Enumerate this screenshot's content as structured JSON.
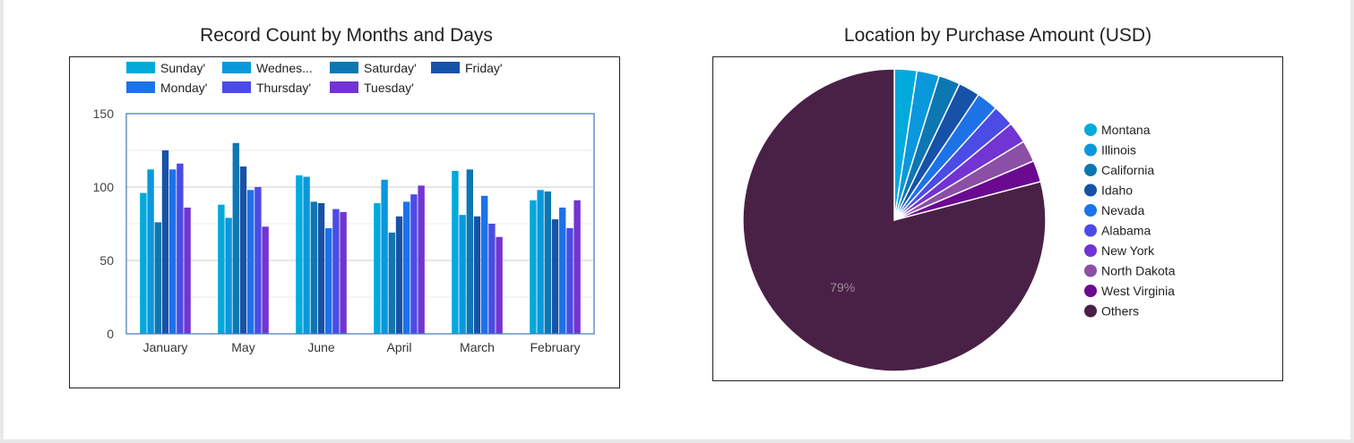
{
  "bar_chart": {
    "title": "Record Count by Months and Days"
  },
  "pie_chart": {
    "title": "Location by Purchase Amount (USD)",
    "label": "79%"
  },
  "chart_data": [
    {
      "type": "bar",
      "title": "Record Count by Months and Days",
      "categories": [
        "January",
        "May",
        "June",
        "April",
        "March",
        "February"
      ],
      "ylim": [
        0,
        150
      ],
      "yticks": [
        0,
        50,
        100,
        150
      ],
      "grid": true,
      "legend_position": "top-left",
      "series": [
        {
          "name": "Sunday'",
          "legend_label": "Sunday'",
          "color": "#00AADB",
          "values": [
            96,
            88,
            108,
            89,
            111,
            91
          ]
        },
        {
          "name": "Wednesday'",
          "legend_label": "Wednes...",
          "color": "#0A98DC",
          "values": [
            112,
            79,
            107,
            105,
            81,
            98
          ]
        },
        {
          "name": "Saturday'",
          "legend_label": "Saturday'",
          "color": "#0D77B2",
          "values": [
            76,
            130,
            90,
            69,
            112,
            97
          ]
        },
        {
          "name": "Friday'",
          "legend_label": "Friday'",
          "color": "#1652A8",
          "values": [
            125,
            114,
            89,
            80,
            80,
            78
          ]
        },
        {
          "name": "Monday'",
          "legend_label": "Monday'",
          "color": "#1D72E8",
          "values": [
            112,
            98,
            72,
            90,
            94,
            86
          ]
        },
        {
          "name": "Thursday'",
          "legend_label": "Thursday'",
          "color": "#4B4BE6",
          "values": [
            116,
            100,
            85,
            95,
            75,
            72
          ]
        },
        {
          "name": "Tuesday'",
          "legend_label": "Tuesday'",
          "color": "#7234D2",
          "values": [
            86,
            73,
            83,
            101,
            66,
            91
          ]
        }
      ]
    },
    {
      "type": "pie",
      "title": "Location by Purchase Amount (USD)",
      "legend_position": "right",
      "slices": [
        {
          "label": "Montana",
          "value": 2.4,
          "color": "#00AADB"
        },
        {
          "label": "Illinois",
          "value": 2.4,
          "color": "#0A98DC"
        },
        {
          "label": "California",
          "value": 2.3,
          "color": "#0D77B2"
        },
        {
          "label": "Idaho",
          "value": 2.3,
          "color": "#1652A8"
        },
        {
          "label": "Nevada",
          "value": 2.3,
          "color": "#1D72E8"
        },
        {
          "label": "Alabama",
          "value": 2.3,
          "color": "#4B4BE6"
        },
        {
          "label": "New York",
          "value": 2.3,
          "color": "#7234D2"
        },
        {
          "label": "North Dakota",
          "value": 2.3,
          "color": "#8B4FA6"
        },
        {
          "label": "West Virginia",
          "value": 2.3,
          "color": "#6B0A91"
        },
        {
          "label": "Others",
          "value": 79.1,
          "color": "#4A2146"
        }
      ],
      "data_labels": [
        {
          "slice": "Others",
          "text": "79%"
        }
      ]
    }
  ]
}
